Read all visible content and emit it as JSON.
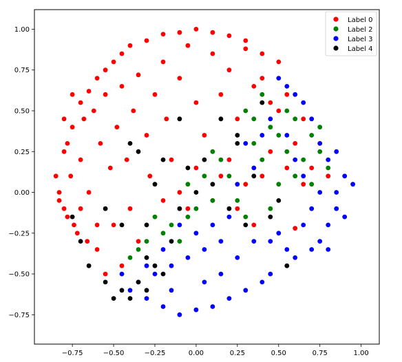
{
  "chart_data": {
    "type": "scatter",
    "title": "",
    "xlabel": "",
    "ylabel": "",
    "xlim": [
      -0.98,
      1.11
    ],
    "ylim": [
      -0.93,
      1.12
    ],
    "x_ticks": [
      -0.75,
      -0.5,
      -0.25,
      0.0,
      0.25,
      0.5,
      0.75,
      1.0
    ],
    "x_tick_labels": [
      "−0.75",
      "−0.50",
      "−0.25",
      "0.00",
      "0.25",
      "0.50",
      "0.75",
      "1.00"
    ],
    "y_ticks": [
      -0.75,
      -0.5,
      -0.25,
      0.0,
      0.25,
      0.5,
      0.75,
      1.0
    ],
    "y_tick_labels": [
      "−0.75",
      "−0.50",
      "−0.25",
      "0.00",
      "0.25",
      "0.50",
      "0.75",
      "1.00"
    ],
    "grid": false,
    "legend_position": "top-right",
    "series": [
      {
        "name": "Label 0",
        "color": "#ff0000",
        "points": [
          [
            -0.83,
            0.0
          ],
          [
            -0.8,
            0.25
          ],
          [
            -0.78,
            -0.15
          ],
          [
            -0.75,
            0.4
          ],
          [
            -0.72,
            -0.25
          ],
          [
            -0.7,
            0.55
          ],
          [
            -0.65,
            0.62
          ],
          [
            -0.6,
            0.7
          ],
          [
            -0.55,
            0.75
          ],
          [
            -0.5,
            0.8
          ],
          [
            -0.45,
            0.85
          ],
          [
            -0.4,
            0.9
          ],
          [
            -0.3,
            0.93
          ],
          [
            -0.2,
            0.97
          ],
          [
            -0.1,
            0.98
          ],
          [
            0.0,
            1.0
          ],
          [
            0.1,
            0.98
          ],
          [
            0.2,
            0.96
          ],
          [
            0.3,
            0.93
          ],
          [
            0.4,
            0.85
          ],
          [
            0.5,
            0.8
          ],
          [
            -0.85,
            0.1
          ],
          [
            -0.83,
            -0.05
          ],
          [
            -0.8,
            -0.1
          ],
          [
            -0.78,
            0.3
          ],
          [
            -0.76,
            0.1
          ],
          [
            -0.74,
            -0.2
          ],
          [
            -0.7,
            0.2
          ],
          [
            -0.68,
            0.45
          ],
          [
            -0.66,
            -0.3
          ],
          [
            -0.62,
            0.5
          ],
          [
            -0.6,
            -0.35
          ],
          [
            -0.58,
            0.3
          ],
          [
            -0.55,
            0.6
          ],
          [
            -0.52,
            0.15
          ],
          [
            -0.5,
            -0.2
          ],
          [
            -0.48,
            0.4
          ],
          [
            -0.45,
            0.65
          ],
          [
            -0.42,
            0.2
          ],
          [
            -0.4,
            -0.1
          ],
          [
            -0.38,
            0.5
          ],
          [
            -0.35,
            0.72
          ],
          [
            -0.3,
            0.35
          ],
          [
            -0.28,
            0.1
          ],
          [
            -0.25,
            0.6
          ],
          [
            -0.2,
            0.8
          ],
          [
            -0.18,
            0.45
          ],
          [
            -0.15,
            0.2
          ],
          [
            -0.1,
            0.7
          ],
          [
            -0.05,
            0.9
          ],
          [
            0.0,
            0.55
          ],
          [
            0.05,
            0.35
          ],
          [
            0.1,
            0.85
          ],
          [
            0.15,
            0.6
          ],
          [
            0.2,
            0.75
          ],
          [
            0.25,
            0.45
          ],
          [
            0.3,
            0.88
          ],
          [
            0.35,
            0.65
          ],
          [
            0.4,
            0.7
          ],
          [
            0.45,
            0.55
          ],
          [
            0.5,
            0.5
          ],
          [
            0.55,
            0.6
          ],
          [
            0.6,
            0.3
          ],
          [
            0.65,
            0.45
          ],
          [
            0.7,
            0.15
          ],
          [
            0.75,
            0.3
          ],
          [
            0.8,
            0.1
          ],
          [
            0.2,
            0.2
          ],
          [
            0.25,
            -0.1
          ],
          [
            0.3,
            0.05
          ],
          [
            0.35,
            -0.2
          ],
          [
            0.4,
            0.1
          ],
          [
            -0.1,
            0.0
          ],
          [
            -0.05,
            -0.1
          ],
          [
            0.0,
            0.15
          ],
          [
            0.1,
            -0.05
          ],
          [
            0.15,
            0.1
          ],
          [
            -0.2,
            -0.05
          ],
          [
            -0.35,
            -0.3
          ],
          [
            -0.45,
            -0.45
          ],
          [
            -0.55,
            -0.5
          ],
          [
            -0.6,
            -0.2
          ],
          [
            -0.65,
            0.0
          ],
          [
            -0.7,
            -0.1
          ],
          [
            0.6,
            -0.22
          ],
          [
            0.65,
            0.05
          ],
          [
            0.55,
            0.15
          ],
          [
            0.45,
            0.25
          ],
          [
            -0.8,
            0.45
          ],
          [
            -0.75,
            0.6
          ]
        ]
      },
      {
        "name": "Label 2",
        "color": "#008000",
        "points": [
          [
            0.4,
            0.6
          ],
          [
            0.45,
            0.4
          ],
          [
            0.5,
            0.35
          ],
          [
            0.55,
            0.25
          ],
          [
            0.6,
            0.1
          ],
          [
            0.65,
            0.2
          ],
          [
            0.7,
            0.35
          ],
          [
            0.75,
            0.4
          ],
          [
            0.8,
            0.15
          ],
          [
            0.3,
            0.5
          ],
          [
            0.35,
            0.3
          ],
          [
            0.2,
            0.1
          ],
          [
            0.1,
            -0.05
          ],
          [
            0.0,
            -0.1
          ],
          [
            -0.05,
            -0.15
          ],
          [
            -0.15,
            -0.2
          ],
          [
            -0.2,
            -0.25
          ],
          [
            -0.3,
            -0.3
          ],
          [
            -0.35,
            -0.35
          ],
          [
            -0.4,
            -0.4
          ],
          [
            -0.25,
            -0.15
          ],
          [
            0.05,
            0.1
          ],
          [
            0.25,
            -0.05
          ],
          [
            0.3,
            -0.15
          ],
          [
            0.45,
            -0.1
          ],
          [
            0.5,
            0.05
          ],
          [
            0.15,
            0.2
          ],
          [
            0.35,
            0.45
          ],
          [
            0.55,
            0.5
          ],
          [
            0.6,
            0.45
          ],
          [
            -0.1,
            -0.3
          ],
          [
            -0.05,
            0.05
          ],
          [
            0.1,
            0.25
          ],
          [
            0.4,
            0.2
          ],
          [
            0.7,
            0.05
          ],
          [
            0.75,
            0.25
          ]
        ]
      },
      {
        "name": "Label 3",
        "color": "#0000ff",
        "points": [
          [
            0.75,
            -0.3
          ],
          [
            0.7,
            -0.35
          ],
          [
            0.8,
            -0.2
          ],
          [
            0.85,
            0.0
          ],
          [
            0.9,
            0.1
          ],
          [
            0.85,
            -0.1
          ],
          [
            0.8,
            0.2
          ],
          [
            0.75,
            0.3
          ],
          [
            0.7,
            0.45
          ],
          [
            0.65,
            0.55
          ],
          [
            0.6,
            0.6
          ],
          [
            0.55,
            0.65
          ],
          [
            0.5,
            0.7
          ],
          [
            0.45,
            -0.5
          ],
          [
            0.4,
            -0.55
          ],
          [
            0.3,
            -0.6
          ],
          [
            0.2,
            -0.65
          ],
          [
            0.1,
            -0.7
          ],
          [
            0.0,
            -0.72
          ],
          [
            -0.1,
            -0.75
          ],
          [
            -0.2,
            -0.7
          ],
          [
            -0.3,
            -0.65
          ],
          [
            -0.4,
            -0.6
          ],
          [
            -0.45,
            -0.5
          ],
          [
            -0.35,
            -0.55
          ],
          [
            -0.25,
            -0.5
          ],
          [
            -0.15,
            -0.45
          ],
          [
            -0.05,
            -0.4
          ],
          [
            0.05,
            -0.35
          ],
          [
            0.15,
            -0.3
          ],
          [
            0.25,
            -0.4
          ],
          [
            0.35,
            -0.3
          ],
          [
            0.5,
            -0.25
          ],
          [
            0.55,
            -0.35
          ],
          [
            0.6,
            -0.4
          ],
          [
            0.65,
            -0.2
          ],
          [
            0.7,
            -0.1
          ],
          [
            0.75,
            0.0
          ],
          [
            0.65,
            0.1
          ],
          [
            0.6,
            0.2
          ],
          [
            0.55,
            0.35
          ],
          [
            0.45,
            0.45
          ],
          [
            0.4,
            0.35
          ],
          [
            0.35,
            0.15
          ],
          [
            0.3,
            0.3
          ],
          [
            0.25,
            0.05
          ],
          [
            0.2,
            -0.15
          ],
          [
            0.1,
            -0.2
          ],
          [
            0.0,
            -0.25
          ],
          [
            -0.1,
            -0.2
          ],
          [
            -0.2,
            -0.35
          ],
          [
            -0.3,
            -0.45
          ],
          [
            -0.15,
            -0.6
          ],
          [
            0.05,
            -0.55
          ],
          [
            0.15,
            -0.5
          ],
          [
            0.45,
            -0.3
          ],
          [
            0.8,
            -0.35
          ],
          [
            0.9,
            -0.15
          ],
          [
            0.95,
            0.05
          ],
          [
            0.85,
            0.25
          ]
        ]
      },
      {
        "name": "Label 4",
        "color": "#000000",
        "points": [
          [
            -0.75,
            -0.15
          ],
          [
            -0.7,
            -0.3
          ],
          [
            -0.65,
            -0.45
          ],
          [
            -0.55,
            -0.55
          ],
          [
            -0.45,
            -0.6
          ],
          [
            -0.35,
            -0.55
          ],
          [
            -0.3,
            -0.4
          ],
          [
            -0.25,
            -0.45
          ],
          [
            -0.2,
            -0.5
          ],
          [
            -0.4,
            -0.65
          ],
          [
            -0.5,
            -0.65
          ],
          [
            -0.3,
            -0.6
          ],
          [
            -0.15,
            -0.3
          ],
          [
            -0.1,
            -0.1
          ],
          [
            0.0,
            0.0
          ],
          [
            0.1,
            0.05
          ],
          [
            0.2,
            -0.1
          ],
          [
            0.3,
            -0.2
          ],
          [
            0.35,
            0.1
          ],
          [
            0.25,
            0.3
          ],
          [
            0.15,
            0.45
          ],
          [
            0.05,
            0.2
          ],
          [
            -0.05,
            0.15
          ],
          [
            -0.2,
            0.2
          ],
          [
            -0.35,
            0.25
          ],
          [
            -0.25,
            0.05
          ],
          [
            -0.45,
            -0.2
          ],
          [
            0.45,
            -0.15
          ],
          [
            0.5,
            -0.05
          ],
          [
            0.55,
            -0.45
          ],
          [
            -0.4,
            0.3
          ],
          [
            -0.55,
            -0.1
          ],
          [
            0.25,
            0.35
          ],
          [
            -0.1,
            0.45
          ],
          [
            0.4,
            0.55
          ],
          [
            -0.3,
            -0.2
          ]
        ]
      }
    ]
  }
}
